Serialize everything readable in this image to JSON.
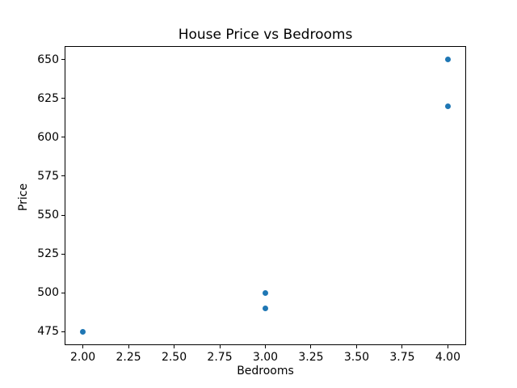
{
  "chart_data": {
    "type": "scatter",
    "title": "House Price vs Bedrooms",
    "xlabel": "Bedrooms",
    "ylabel": "Price",
    "x": [
      2,
      3,
      3,
      4,
      4
    ],
    "y": [
      475,
      490,
      500,
      620,
      650
    ],
    "points": [
      {
        "x": 2,
        "y": 475
      },
      {
        "x": 3,
        "y": 490
      },
      {
        "x": 3,
        "y": 500
      },
      {
        "x": 4,
        "y": 620
      },
      {
        "x": 4,
        "y": 650
      }
    ],
    "xlim": [
      1.9,
      4.1
    ],
    "ylim": [
      466.25,
      658.75
    ],
    "xticks": [
      "2.00",
      "2.25",
      "2.50",
      "2.75",
      "3.00",
      "3.25",
      "3.50",
      "3.75",
      "4.00"
    ],
    "yticks": [
      "475",
      "500",
      "525",
      "550",
      "575",
      "600",
      "625",
      "650"
    ],
    "marker_color": "#1f77b4",
    "axis_color": "#000000",
    "background_color": "#ffffff",
    "grid": false,
    "legend": null
  }
}
